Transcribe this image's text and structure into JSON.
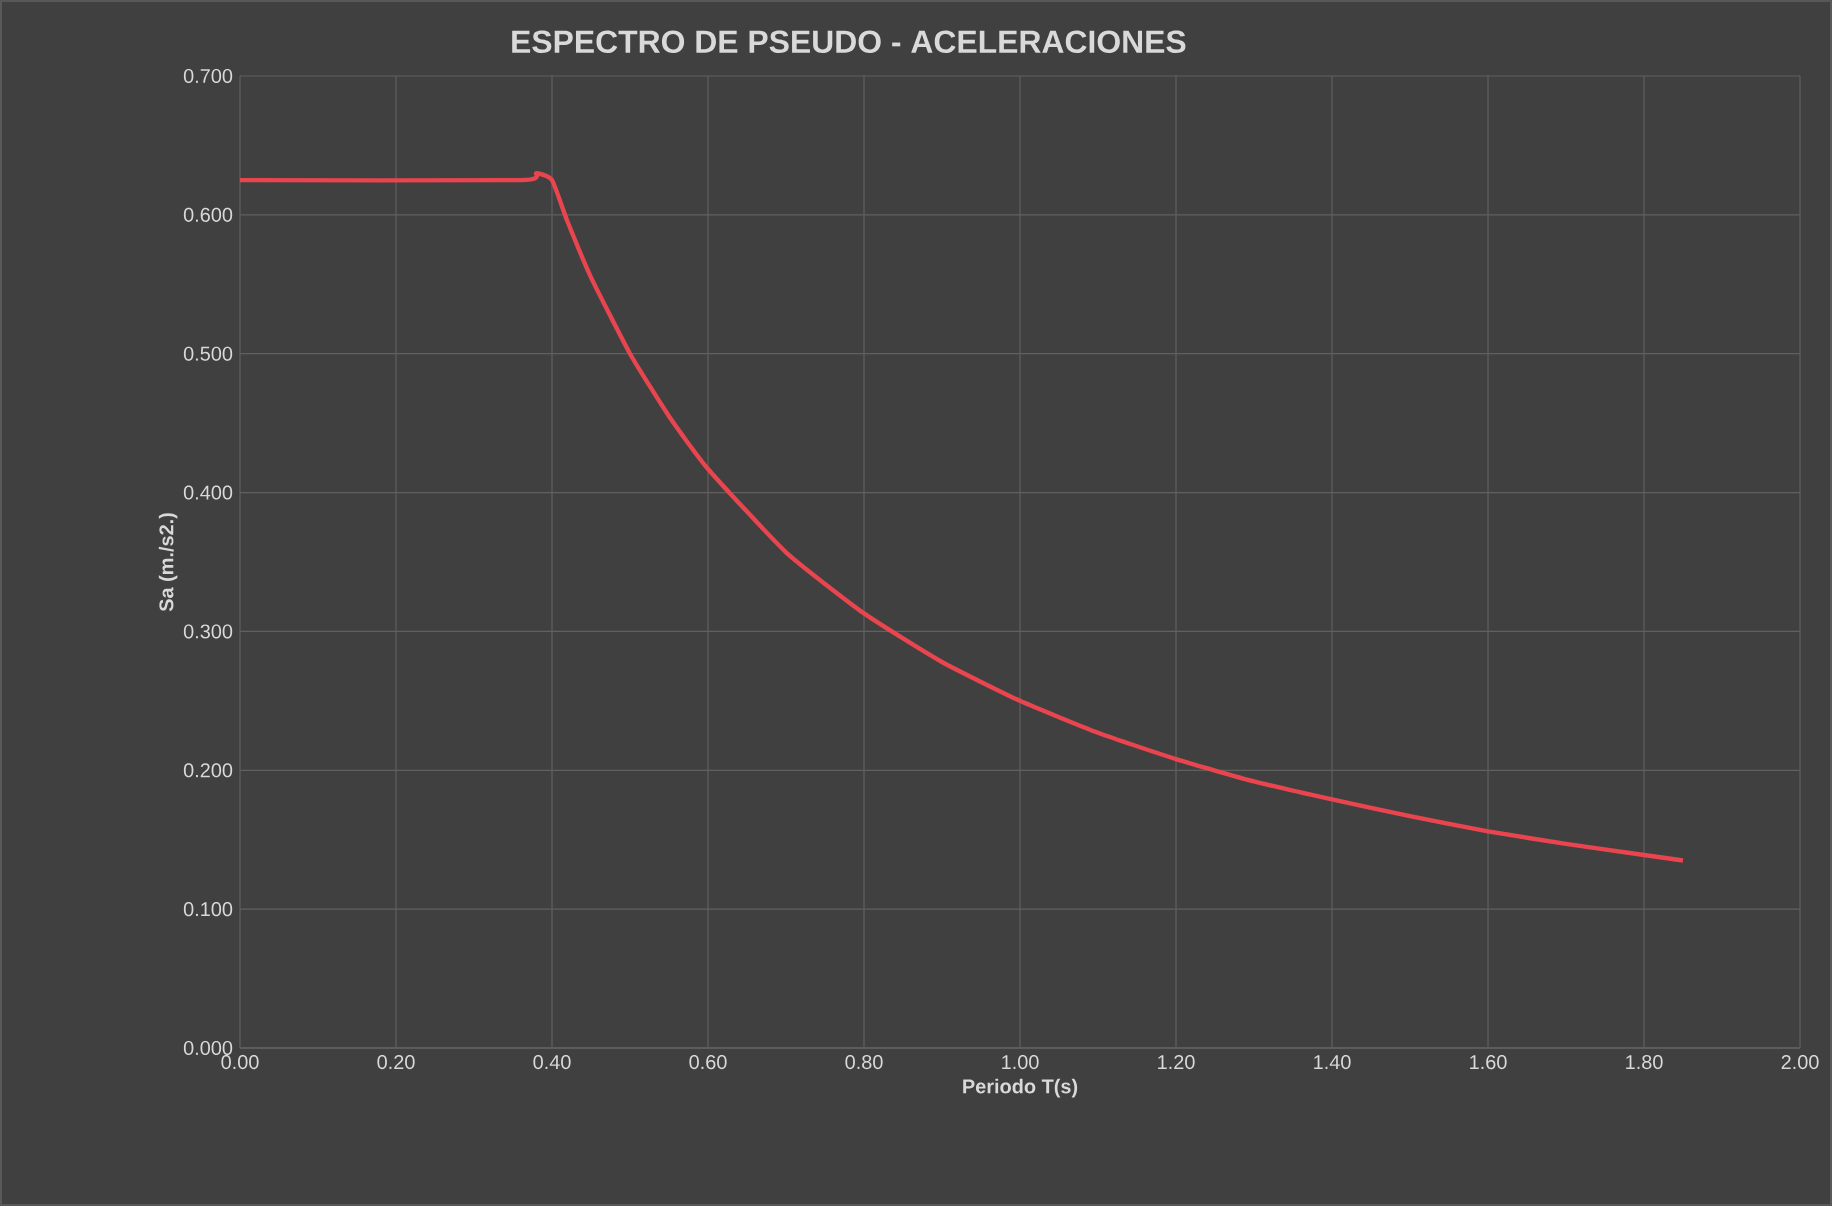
{
  "chart_data": {
    "type": "line",
    "title": "ESPECTRO DE PSEUDO - ACELERACIONES",
    "xlabel": "Periodo T(s)",
    "ylabel": "Sa (m./s2.)",
    "x": [
      0,
      0.36,
      0.38,
      0.4,
      0.42,
      0.45,
      0.5,
      0.55,
      0.6,
      0.7,
      0.8,
      0.9,
      1.0,
      1.1,
      1.2,
      1.3,
      1.4,
      1.5,
      1.6,
      1.7,
      1.8,
      1.85
    ],
    "series": [
      {
        "color": "#e8454f",
        "values": [
          0.625,
          0.625,
          0.63,
          0.625,
          0.595,
          0.555,
          0.5,
          0.455,
          0.417,
          0.357,
          0.313,
          0.278,
          0.25,
          0.227,
          0.208,
          0.192,
          0.179,
          0.167,
          0.156,
          0.147,
          0.139,
          0.135
        ]
      }
    ],
    "xlim": [
      0,
      2
    ],
    "ylim": [
      0,
      0.7
    ],
    "xticks": [
      {
        "value": 0,
        "label": "0.00"
      },
      {
        "value": 0.2,
        "label": "0.20"
      },
      {
        "value": 0.4,
        "label": "0.40"
      },
      {
        "value": 0.6,
        "label": "0.60"
      },
      {
        "value": 0.8,
        "label": "0.80"
      },
      {
        "value": 1.0,
        "label": "1.00"
      },
      {
        "value": 1.2,
        "label": "1.20"
      },
      {
        "value": 1.4,
        "label": "1.40"
      },
      {
        "value": 1.6,
        "label": "1.60"
      },
      {
        "value": 1.8,
        "label": "1.80"
      },
      {
        "value": 2.0,
        "label": "2.00"
      }
    ],
    "yticks": [
      {
        "value": 0,
        "label": "0.000"
      },
      {
        "value": 0.1,
        "label": "0.100"
      },
      {
        "value": 0.2,
        "label": "0.200"
      },
      {
        "value": 0.3,
        "label": "0.300"
      },
      {
        "value": 0.4,
        "label": "0.400"
      },
      {
        "value": 0.5,
        "label": "0.500"
      },
      {
        "value": 0.6,
        "label": "0.600"
      },
      {
        "value": 0.7,
        "label": "0.700"
      }
    ],
    "grid": true,
    "marker": "none",
    "line_style": "solid"
  }
}
